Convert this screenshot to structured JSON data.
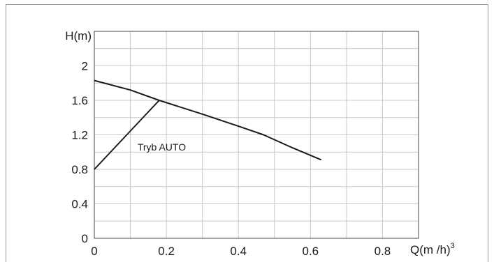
{
  "chart_data": {
    "type": "line",
    "title": "",
    "ylabel": "H(m)",
    "xlabel_main": "Q(m /h)",
    "xlabel_sup": "3",
    "xlim": [
      0,
      0.9
    ],
    "ylim": [
      0,
      2.4
    ],
    "x_ticks": [
      {
        "v": 0,
        "label": "0"
      },
      {
        "v": 0.2,
        "label": "0.2"
      },
      {
        "v": 0.4,
        "label": "0.4"
      },
      {
        "v": 0.6,
        "label": "0.6"
      },
      {
        "v": 0.8,
        "label": "0.8"
      }
    ],
    "y_ticks": [
      {
        "v": 0,
        "label": "0"
      },
      {
        "v": 0.4,
        "label": "0.4"
      },
      {
        "v": 0.8,
        "label": "0.8"
      },
      {
        "v": 1.2,
        "label": "1.2"
      },
      {
        "v": 1.6,
        "label": "1.6"
      },
      {
        "v": 2.0,
        "label": "2"
      }
    ],
    "grid": true,
    "grid_x_step": 0.1,
    "grid_y_step": 0.2,
    "series": [
      {
        "x": [
          0,
          0.1,
          0.18,
          0.3,
          0.4,
          0.47,
          0.55,
          0.63
        ],
        "y": [
          1.83,
          1.72,
          1.6,
          1.44,
          1.3,
          1.2,
          1.05,
          0.91
        ]
      },
      {
        "x": [
          0,
          0.18
        ],
        "y": [
          0.8,
          1.6
        ]
      }
    ],
    "annotations": [
      {
        "text": "Tryb AUTO",
        "x": 0.12,
        "y": 1.02
      }
    ]
  }
}
